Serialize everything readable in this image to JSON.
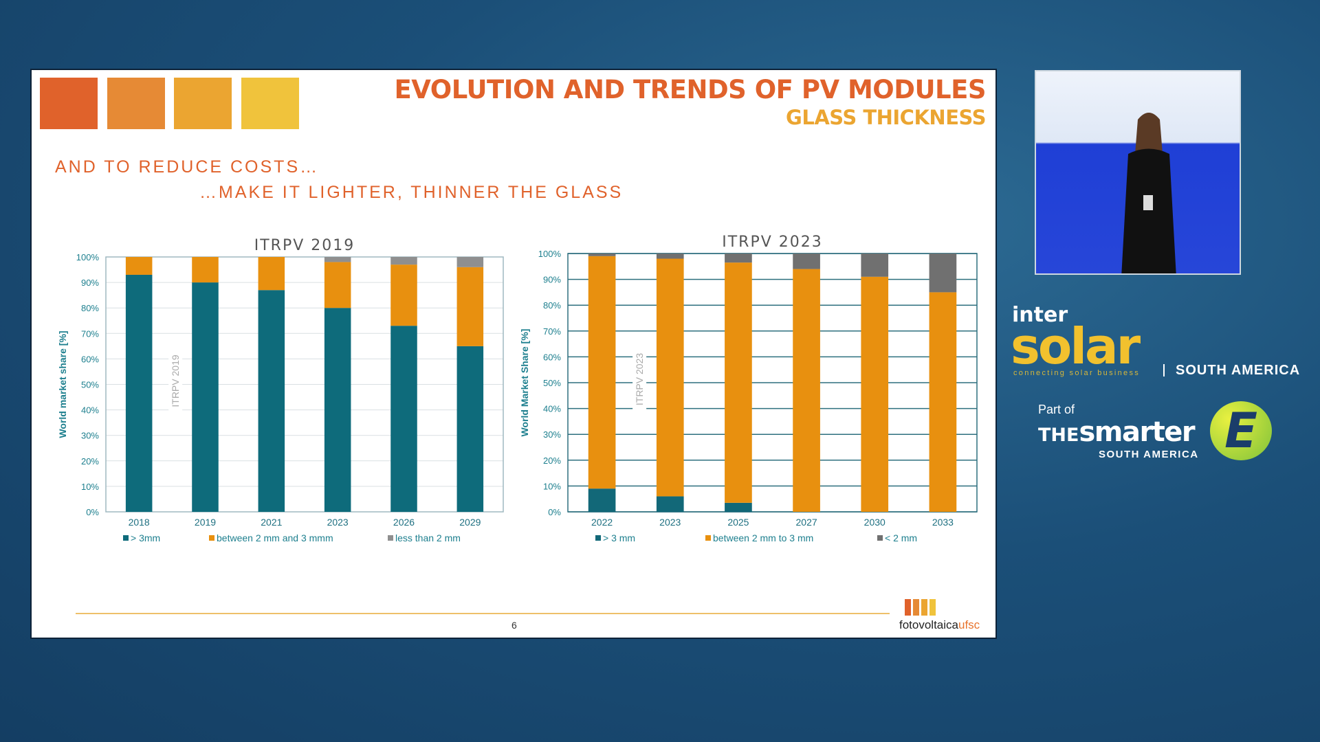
{
  "slide": {
    "title": "EVOLUTION AND TRENDS OF PV MODULES",
    "subtitle": "GLASS THICKNESS",
    "headline1": "AND TO REDUCE COSTS…",
    "headline2": "…MAKE IT LIGHTER, THINNER THE GLASS",
    "page_number": "6",
    "logo_text_main": "fotovoltaica",
    "logo_text_accent": "ufsc",
    "square_colors": [
      "#e0622b",
      "#e68a35",
      "#eba531",
      "#f0c33c"
    ]
  },
  "chart_data": [
    {
      "type": "bar",
      "stacked": true,
      "title": "ITRPV 2019",
      "watermark": "ITRPV 2019",
      "ylabel": "World market share [%]",
      "ylim": [
        0,
        100
      ],
      "yticks": [
        "0%",
        "10%",
        "20%",
        "30%",
        "40%",
        "50%",
        "60%",
        "70%",
        "80%",
        "90%",
        "100%"
      ],
      "categories": [
        "2018",
        "2019",
        "2021",
        "2023",
        "2026",
        "2029"
      ],
      "series": [
        {
          "name": "> 3mm",
          "color": "#0e6b7b",
          "values": [
            93,
            90,
            87,
            80,
            73,
            65
          ]
        },
        {
          "name": "between 2 mm and 3 mmm",
          "color": "#e8900f",
          "values": [
            7,
            10,
            13,
            18,
            24,
            31
          ]
        },
        {
          "name": "less than 2 mm",
          "color": "#8f8f8f",
          "values": [
            0,
            0,
            0,
            2,
            3,
            4
          ]
        }
      ]
    },
    {
      "type": "bar",
      "stacked": true,
      "title": "ITRPV 2023",
      "watermark": "ITRPV 2023",
      "ylabel": "World Market Share [%]",
      "ylim": [
        0,
        100
      ],
      "yticks": [
        "0%",
        "10%",
        "20%",
        "30%",
        "40%",
        "50%",
        "60%",
        "70%",
        "80%",
        "90%",
        "100%"
      ],
      "categories": [
        "2022",
        "2023",
        "2025",
        "2027",
        "2030",
        "2033"
      ],
      "series": [
        {
          "name": "> 3 mm",
          "color": "#126878",
          "values": [
            9,
            6,
            3.5,
            0,
            0,
            0
          ]
        },
        {
          "name": "between 2 mm to 3 mm",
          "color": "#e8900f",
          "values": [
            90,
            92,
            93,
            94,
            91,
            85
          ]
        },
        {
          "name": "< 2 mm",
          "color": "#707070",
          "values": [
            1,
            2,
            3.5,
            6,
            9,
            15
          ]
        }
      ]
    }
  ],
  "sidebar": {
    "intersolar_inter": "inter",
    "intersolar_solar": "solar",
    "intersolar_tagline": "connecting solar business",
    "intersolar_region": "SOUTH AMERICA",
    "part_of": "Part of",
    "smarter_the": "THE",
    "smarter_name": "smarter",
    "smarter_region": "SOUTH AMERICA",
    "smarter_e": "E"
  }
}
